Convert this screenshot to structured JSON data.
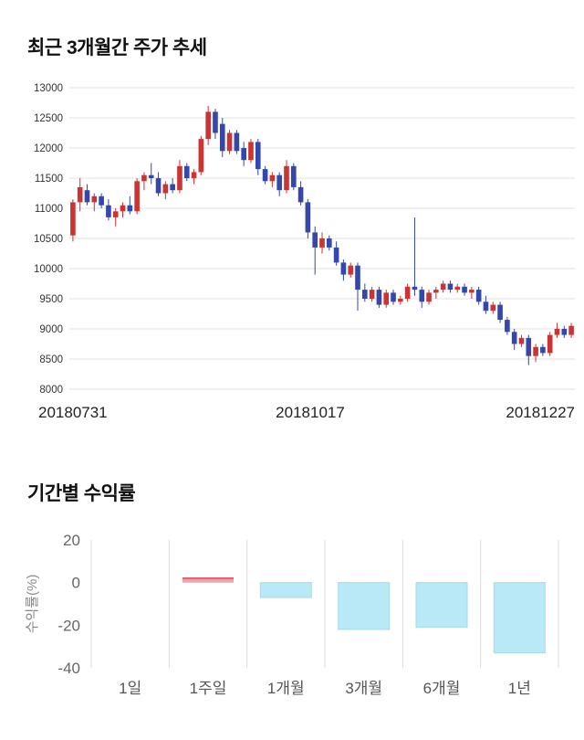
{
  "chart_data": [
    {
      "type": "candlestick",
      "title": "최근 3개월간 주가 추세",
      "ylim": [
        8000,
        13000
      ],
      "yticks": [
        8000,
        8500,
        9000,
        9500,
        10000,
        10500,
        11000,
        11500,
        12000,
        12500,
        13000
      ],
      "x_axis_labels": [
        "20180731",
        "20181017",
        "20181227"
      ],
      "legend": "none",
      "grid": "horizontal",
      "colors": {
        "up": "#cc3333",
        "down": "#3347ad",
        "grid": "#e0e0e0",
        "tick_text": "#333333",
        "date_text": "#222222"
      },
      "candles_ohlc": [
        [
          10550,
          11150,
          10450,
          11100
        ],
        [
          11100,
          11500,
          10950,
          11350
        ],
        [
          11300,
          11400,
          11050,
          11100
        ],
        [
          11100,
          11250,
          10950,
          11200
        ],
        [
          11200,
          11250,
          11000,
          11050
        ],
        [
          11050,
          11150,
          10800,
          10850
        ],
        [
          10850,
          11000,
          10700,
          10950
        ],
        [
          10950,
          11100,
          10850,
          11050
        ],
        [
          11050,
          11200,
          10900,
          10950
        ],
        [
          10950,
          11500,
          10900,
          11450
        ],
        [
          11450,
          11600,
          11300,
          11550
        ],
        [
          11550,
          11750,
          11400,
          11500
        ],
        [
          11500,
          11600,
          11200,
          11250
        ],
        [
          11250,
          11450,
          11150,
          11400
        ],
        [
          11400,
          11500,
          11250,
          11300
        ],
        [
          11300,
          11800,
          11250,
          11700
        ],
        [
          11700,
          11750,
          11450,
          11500
        ],
        [
          11500,
          11650,
          11400,
          11600
        ],
        [
          11600,
          12200,
          11550,
          12150
        ],
        [
          12150,
          12700,
          12050,
          12600
        ],
        [
          12600,
          12650,
          12150,
          12250
        ],
        [
          12400,
          12500,
          11850,
          11950
        ],
        [
          11950,
          12300,
          11900,
          12250
        ],
        [
          12250,
          12300,
          11900,
          11950
        ],
        [
          12000,
          12100,
          11700,
          11800
        ],
        [
          11800,
          12150,
          11750,
          12100
        ],
        [
          12100,
          12150,
          11550,
          11650
        ],
        [
          11650,
          11700,
          11400,
          11450
        ],
        [
          11450,
          11600,
          11350,
          11550
        ],
        [
          11550,
          11600,
          11200,
          11300
        ],
        [
          11300,
          11800,
          11250,
          11700
        ],
        [
          11700,
          11750,
          11300,
          11350
        ],
        [
          11350,
          11450,
          11050,
          11100
        ],
        [
          11100,
          11150,
          10500,
          10600
        ],
        [
          10600,
          10700,
          9900,
          10350
        ],
        [
          10350,
          10600,
          10250,
          10500
        ],
        [
          10500,
          10550,
          10300,
          10350
        ],
        [
          10350,
          10450,
          10050,
          10100
        ],
        [
          10100,
          10150,
          9800,
          9900
        ],
        [
          9900,
          10100,
          9850,
          10050
        ],
        [
          10050,
          10100,
          9300,
          9650
        ],
        [
          9650,
          9750,
          9450,
          9500
        ],
        [
          9500,
          9700,
          9450,
          9650
        ],
        [
          9650,
          9700,
          9350,
          9400
        ],
        [
          9400,
          9650,
          9350,
          9600
        ],
        [
          9600,
          9650,
          9400,
          9450
        ],
        [
          9450,
          9550,
          9400,
          9500
        ],
        [
          9500,
          9750,
          9450,
          9700
        ],
        [
          9700,
          10850,
          9550,
          9650
        ],
        [
          9650,
          9700,
          9350,
          9450
        ],
        [
          9450,
          9650,
          9400,
          9600
        ],
        [
          9600,
          9700,
          9500,
          9650
        ],
        [
          9650,
          9800,
          9600,
          9750
        ],
        [
          9750,
          9800,
          9600,
          9650
        ],
        [
          9650,
          9750,
          9600,
          9700
        ],
        [
          9700,
          9750,
          9550,
          9600
        ],
        [
          9600,
          9700,
          9500,
          9650
        ],
        [
          9650,
          9700,
          9400,
          9450
        ],
        [
          9450,
          9550,
          9250,
          9300
        ],
        [
          9300,
          9450,
          9250,
          9400
        ],
        [
          9400,
          9450,
          9100,
          9150
        ],
        [
          9150,
          9200,
          8900,
          8950
        ],
        [
          8950,
          9000,
          8650,
          8750
        ],
        [
          8750,
          8900,
          8700,
          8850
        ],
        [
          8850,
          8900,
          8400,
          8550
        ],
        [
          8550,
          8750,
          8450,
          8700
        ],
        [
          8700,
          8750,
          8550,
          8600
        ],
        [
          8600,
          8950,
          8550,
          8900
        ],
        [
          8900,
          9100,
          8850,
          9000
        ],
        [
          9000,
          9050,
          8850,
          8900
        ],
        [
          8900,
          9100,
          8850,
          9050
        ]
      ]
    },
    {
      "type": "bar",
      "title": "기간별 수익률",
      "ylabel": "수익률(%)",
      "ylim": [
        -40,
        20
      ],
      "yticks": [
        20,
        0,
        -20,
        -40
      ],
      "categories": [
        "1일",
        "1주일",
        "1개월",
        "3개월",
        "6개월",
        "1년"
      ],
      "values": [
        0,
        2,
        -7,
        -22,
        -21,
        -33
      ],
      "grid": "vertical",
      "legend": "none",
      "colors": {
        "positive": "#f3a1a9",
        "positive_edge": "#e2646e",
        "negative": "#b9e8f6",
        "negative_edge": "#a6d9e8",
        "grid": "#dddddd",
        "tick_text": "#666666",
        "category_text": "#555555",
        "ylabel_text": "#888888"
      }
    }
  ]
}
